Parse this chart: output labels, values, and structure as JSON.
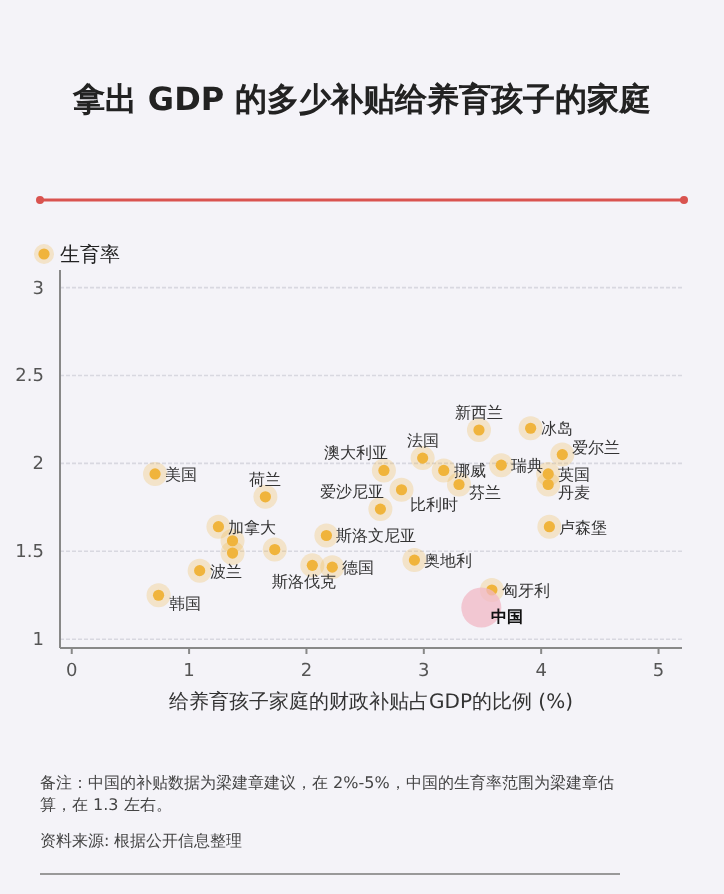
{
  "chart_data": {
    "type": "scatter",
    "title": "拿出 GDP 的多少补贴给养育孩子的家庭",
    "xlabel": "给养育孩子家庭的财政补贴占GDP的比例 (%)",
    "xlim": [
      -0.1,
      5.2
    ],
    "xticks": [
      0,
      1,
      2,
      3,
      4,
      5
    ],
    "ylim": [
      0.95,
      3.1
    ],
    "yticks": [
      1,
      1.5,
      2,
      2.5,
      3
    ],
    "grid": "y",
    "legend": "top left",
    "marker": "circle",
    "series": [
      {
        "name": "生育率",
        "color": "#f0b43c",
        "x": [
          0.71,
          1.65,
          1.25,
          1.37,
          1.37,
          1.73,
          1.09,
          0.74,
          2.17,
          2.05,
          2.22,
          2.66,
          2.63,
          2.81,
          2.99,
          3.17,
          3.3,
          2.92,
          3.47,
          3.91,
          3.66,
          4.18,
          4.06,
          4.06,
          4.07,
          3.58
        ],
        "values": [
          1.94,
          1.81,
          1.64,
          1.56,
          1.49,
          1.51,
          1.39,
          1.25,
          1.59,
          1.42,
          1.41,
          1.96,
          1.74,
          1.85,
          2.03,
          1.96,
          1.88,
          1.45,
          2.19,
          2.2,
          1.99,
          2.05,
          1.94,
          1.88,
          1.64,
          1.28
        ]
      },
      {
        "type": "bubble",
        "color": "#f2b8c6",
        "x": [
          3.49
        ],
        "values": [
          1.18
        ],
        "sizes": [
          1
        ]
      }
    ],
    "annotations": [
      {
        "text": "美国",
        "x": 0.71,
        "y": 1.94
      },
      {
        "text": "荷兰",
        "x": 1.65,
        "y": 1.81
      },
      {
        "text": "加拿大",
        "x": 1.25,
        "y": 1.64
      },
      {
        "text": "波兰",
        "x": 1.09,
        "y": 1.39
      },
      {
        "text": "韩国",
        "x": 0.74,
        "y": 1.25
      },
      {
        "text": "斯洛文尼亚",
        "x": 2.17,
        "y": 1.59
      },
      {
        "text": "斯洛伐克",
        "x": 2.05,
        "y": 1.42
      },
      {
        "text": "德国",
        "x": 2.22,
        "y": 1.41
      },
      {
        "text": "澳大利亚",
        "x": 2.66,
        "y": 1.96
      },
      {
        "text": "爱沙尼亚",
        "x": 2.63,
        "y": 1.74
      },
      {
        "text": "比利时",
        "x": 2.81,
        "y": 1.85
      },
      {
        "text": "法国",
        "x": 2.99,
        "y": 2.03
      },
      {
        "text": "挪威",
        "x": 3.17,
        "y": 1.96
      },
      {
        "text": "芬兰",
        "x": 3.3,
        "y": 1.88
      },
      {
        "text": "奥地利",
        "x": 2.92,
        "y": 1.45
      },
      {
        "text": "新西兰",
        "x": 3.47,
        "y": 2.19
      },
      {
        "text": "冰岛",
        "x": 3.91,
        "y": 2.2
      },
      {
        "text": "瑞典",
        "x": 3.66,
        "y": 1.99
      },
      {
        "text": "爱尔兰",
        "x": 4.18,
        "y": 2.05
      },
      {
        "text": "英国",
        "x": 4.06,
        "y": 1.94
      },
      {
        "text": "丹麦",
        "x": 4.06,
        "y": 1.88
      },
      {
        "text": "卢森堡",
        "x": 4.07,
        "y": 1.64
      },
      {
        "text": "匈牙利",
        "x": 3.58,
        "y": 1.28
      },
      {
        "text": "中国",
        "x": 3.49,
        "y": 1.18
      },
      "备注：中国的补贴数据为梁建章建议，在 2%-5%，中国的生育率范围为梁建章估算，在 1.3 左右。",
      "资料来源: 根据公开信息整理"
    ]
  }
}
